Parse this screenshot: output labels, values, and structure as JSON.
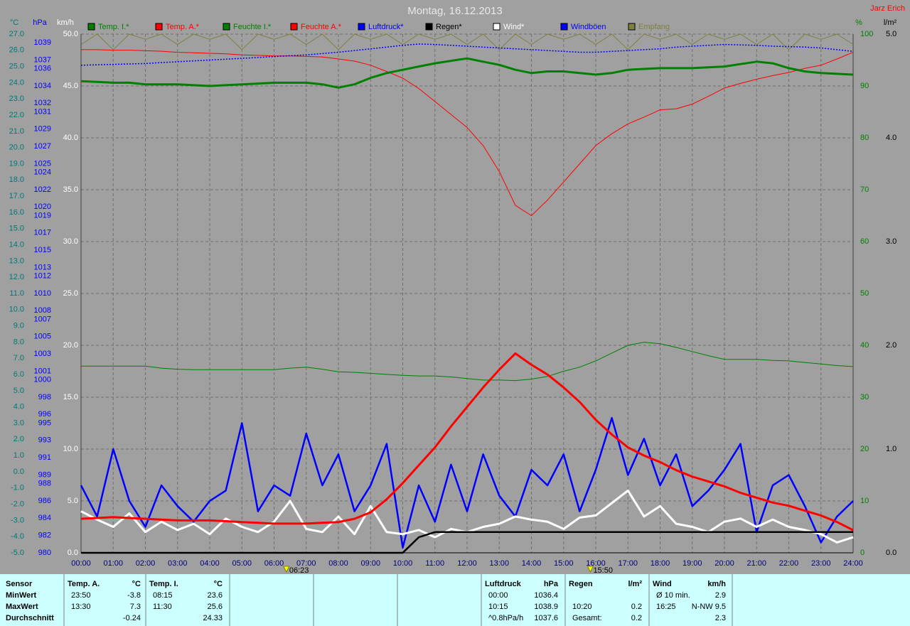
{
  "chart_data": {
    "type": "line",
    "title": "Montag, 16.12.2013",
    "author": "Jarz Erich",
    "grid": true,
    "x": [
      0,
      0.5,
      1,
      1.5,
      2,
      2.5,
      3,
      3.5,
      4,
      4.5,
      5,
      5.5,
      6,
      6.5,
      7,
      7.5,
      8,
      8.5,
      9,
      9.5,
      10,
      10.5,
      11,
      11.5,
      12,
      12.5,
      13,
      13.5,
      14,
      14.5,
      15,
      15.5,
      16,
      16.5,
      17,
      17.5,
      18,
      18.5,
      19,
      19.5,
      20,
      20.5,
      21,
      21.5,
      22,
      22.5,
      23,
      23.5,
      24
    ],
    "xlim": [
      0,
      24
    ],
    "xticks": [
      {
        "value": 0,
        "label": "00:00"
      },
      {
        "value": 1,
        "label": "01:00"
      },
      {
        "value": 2,
        "label": "02:00"
      },
      {
        "value": 3,
        "label": "03:00"
      },
      {
        "value": 4,
        "label": "04:00"
      },
      {
        "value": 5,
        "label": "05:00"
      },
      {
        "value": 6,
        "label": "06:00"
      },
      {
        "value": 7,
        "label": "07:00"
      },
      {
        "value": 8,
        "label": "08:00"
      },
      {
        "value": 9,
        "label": "09:00"
      },
      {
        "value": 10,
        "label": "10:00"
      },
      {
        "value": 11,
        "label": "11:00"
      },
      {
        "value": 12,
        "label": "12:00"
      },
      {
        "value": 13,
        "label": "13:00"
      },
      {
        "value": 14,
        "label": "14:00"
      },
      {
        "value": 15,
        "label": "15:00"
      },
      {
        "value": 16,
        "label": "16:00"
      },
      {
        "value": 17,
        "label": "17:00"
      },
      {
        "value": 18,
        "label": "18:00"
      },
      {
        "value": 19,
        "label": "19:00"
      },
      {
        "value": 20,
        "label": "20:00"
      },
      {
        "value": 21,
        "label": "21:00"
      },
      {
        "value": 22,
        "label": "22:00"
      },
      {
        "value": 23,
        "label": "23:00"
      },
      {
        "value": 24,
        "label": "24:00"
      }
    ],
    "markers": [
      {
        "value": 6.383,
        "label": "06:23"
      },
      {
        "value": 15.833,
        "label": "15:50"
      }
    ],
    "axes": [
      {
        "label": "°C",
        "color": "#007878",
        "lim": [
          -5,
          27
        ],
        "ticks": [
          {
            "value": -5,
            "label": "-5.0"
          },
          {
            "value": -4,
            "label": "-4.0"
          },
          {
            "value": -3,
            "label": "-3.0"
          },
          {
            "value": -2,
            "label": "-2.0"
          },
          {
            "value": -1,
            "label": "-1.0"
          },
          {
            "value": 0,
            "label": "0.0"
          },
          {
            "value": 1,
            "label": "1.0"
          },
          {
            "value": 2,
            "label": "2.0"
          },
          {
            "value": 3,
            "label": "3.0"
          },
          {
            "value": 4,
            "label": "4.0"
          },
          {
            "value": 5,
            "label": "5.0"
          },
          {
            "value": 6,
            "label": "6.0"
          },
          {
            "value": 7,
            "label": "7.0"
          },
          {
            "value": 8,
            "label": "8.0"
          },
          {
            "value": 9,
            "label": "9.0"
          },
          {
            "value": 10,
            "label": "10.0"
          },
          {
            "value": 11,
            "label": "11.0"
          },
          {
            "value": 12,
            "label": "12.0"
          },
          {
            "value": 13,
            "label": "13.0"
          },
          {
            "value": 14,
            "label": "14.0"
          },
          {
            "value": 15,
            "label": "15.0"
          },
          {
            "value": 16,
            "label": "16.0"
          },
          {
            "value": 17,
            "label": "17.0"
          },
          {
            "value": 18,
            "label": "18.0"
          },
          {
            "value": 19,
            "label": "19.0"
          },
          {
            "value": 20,
            "label": "20.0"
          },
          {
            "value": 21,
            "label": "21.0"
          },
          {
            "value": 22,
            "label": "22.0"
          },
          {
            "value": 23,
            "label": "23.0"
          },
          {
            "value": 24,
            "label": "24.0"
          },
          {
            "value": 25,
            "label": "25.0"
          },
          {
            "value": 26,
            "label": "26.0"
          },
          {
            "value": 27,
            "label": "27.0"
          }
        ]
      },
      {
        "label": "hPa",
        "color": "#0000ff",
        "lim": [
          980,
          1040
        ],
        "ticks": [
          980,
          982,
          984,
          986,
          988,
          989,
          991,
          993,
          995,
          996,
          998,
          1000,
          1001,
          1003,
          1005,
          1007,
          1008,
          1010,
          1012,
          1013,
          1015,
          1017,
          1019,
          1020,
          1022,
          1024,
          1025,
          1027,
          1029,
          1031,
          1032,
          1034,
          1036,
          1037,
          1039
        ]
      },
      {
        "label": "km/h",
        "color": "#ffffff",
        "grid": true,
        "lim": [
          0,
          50
        ],
        "ticks": [
          {
            "value": 0,
            "label": "0.0"
          },
          {
            "value": 5,
            "label": "5.0"
          },
          {
            "value": 10,
            "label": "10.0"
          },
          {
            "value": 15,
            "label": "15.0"
          },
          {
            "value": 20,
            "label": "20.0"
          },
          {
            "value": 25,
            "label": "25.0"
          },
          {
            "value": 30,
            "label": "30.0"
          },
          {
            "value": 35,
            "label": "35.0"
          },
          {
            "value": 40,
            "label": "40.0"
          },
          {
            "value": 45,
            "label": "45.0"
          },
          {
            "value": 50,
            "label": "50.0"
          }
        ]
      },
      {
        "label": "%",
        "color": "#008000",
        "lim": [
          0,
          100
        ],
        "ticks": [
          0,
          10,
          20,
          30,
          40,
          50,
          60,
          70,
          80,
          90,
          100
        ]
      },
      {
        "label": "l/m²",
        "color": "#000000",
        "lim": [
          0,
          5
        ],
        "ticks": [
          {
            "value": 0,
            "label": "0.0"
          },
          {
            "value": 1,
            "label": "1.0"
          },
          {
            "value": 2,
            "label": "2.0"
          },
          {
            "value": 3,
            "label": "3.0"
          },
          {
            "value": 4,
            "label": "4.0"
          },
          {
            "value": 5,
            "label": "5.0"
          }
        ]
      }
    ],
    "series": [
      {
        "name": "Temp. I.*",
        "color": "#008000",
        "axis": 0,
        "values": [
          24.1,
          24.05,
          24.0,
          24.0,
          23.9,
          23.9,
          23.9,
          23.85,
          23.8,
          23.85,
          23.9,
          23.95,
          24.0,
          24.0,
          24.0,
          23.9,
          23.7,
          23.9,
          24.3,
          24.6,
          24.8,
          25.0,
          25.2,
          25.35,
          25.5,
          25.3,
          25.1,
          24.8,
          24.6,
          24.7,
          24.7,
          24.6,
          24.5,
          24.6,
          24.8,
          24.85,
          24.9,
          24.9,
          24.9,
          24.95,
          25.0,
          25.15,
          25.3,
          25.2,
          24.9,
          24.7,
          24.6,
          24.55,
          24.5
        ]
      },
      {
        "name": "Temp. A.*",
        "color": "#ff0000",
        "axis": 0,
        "values": [
          -2.9,
          -2.85,
          -2.8,
          -2.85,
          -2.9,
          -2.95,
          -3.0,
          -3.0,
          -3.0,
          -3.05,
          -3.1,
          -3.15,
          -3.2,
          -3.2,
          -3.2,
          -3.15,
          -3.1,
          -2.9,
          -2.5,
          -1.7,
          -0.7,
          0.4,
          1.5,
          2.8,
          4.0,
          5.2,
          6.3,
          7.3,
          6.6,
          6.0,
          5.2,
          4.3,
          3.2,
          2.3,
          1.5,
          1.0,
          0.6,
          0.1,
          -0.3,
          -0.6,
          -0.9,
          -1.3,
          -1.6,
          -1.9,
          -2.1,
          -2.4,
          -2.7,
          -3.1,
          -3.6
        ]
      },
      {
        "name": "Feuchte I.*",
        "color": "#008000",
        "axis": 3,
        "values": [
          36.0,
          36.0,
          36.0,
          36.0,
          36.0,
          35.6,
          35.4,
          35.3,
          35.3,
          35.3,
          35.3,
          35.3,
          35.3,
          35.6,
          35.8,
          35.4,
          34.9,
          34.8,
          34.6,
          34.4,
          34.2,
          34.1,
          34.1,
          33.9,
          33.6,
          33.3,
          33.3,
          33.2,
          33.5,
          34.0,
          35.0,
          35.8,
          37.0,
          38.5,
          40.0,
          40.6,
          40.3,
          39.6,
          38.8,
          38.0,
          37.3,
          37.3,
          37.3,
          37.1,
          37.0,
          36.7,
          36.4,
          36.1,
          35.9
        ]
      },
      {
        "name": "Feuchte A.*",
        "color": "#ff0000",
        "axis": 3,
        "values": [
          97.0,
          97.0,
          96.9,
          96.9,
          96.8,
          96.7,
          96.5,
          96.4,
          96.3,
          96.2,
          96.0,
          95.9,
          95.8,
          95.8,
          95.7,
          95.6,
          95.2,
          94.8,
          94.0,
          92.8,
          91.5,
          89.5,
          87.0,
          84.5,
          82.0,
          78.5,
          73.5,
          67.0,
          65.0,
          68.0,
          71.5,
          75.0,
          78.5,
          80.8,
          82.7,
          84.0,
          85.4,
          85.6,
          86.5,
          88.0,
          89.6,
          90.5,
          91.3,
          92.0,
          92.6,
          93.4,
          94.0,
          95.2,
          96.5
        ]
      },
      {
        "name": "Luftdruck*",
        "color": "#0000ff",
        "axis": 1,
        "values": [
          1036.4,
          1036.45,
          1036.5,
          1036.55,
          1036.6,
          1036.7,
          1036.8,
          1036.9,
          1037.0,
          1037.1,
          1037.2,
          1037.3,
          1037.4,
          1037.5,
          1037.6,
          1037.75,
          1037.9,
          1038.1,
          1038.3,
          1038.5,
          1038.7,
          1038.85,
          1038.8,
          1038.7,
          1038.6,
          1038.5,
          1038.4,
          1038.3,
          1038.2,
          1038.1,
          1038.0,
          1037.9,
          1037.9,
          1038.0,
          1038.1,
          1038.2,
          1038.3,
          1038.5,
          1038.6,
          1038.7,
          1038.8,
          1038.75,
          1038.7,
          1038.6,
          1038.55,
          1038.5,
          1038.4,
          1038.2,
          1038.0
        ]
      },
      {
        "name": "Regen*",
        "color": "#000000",
        "axis": 4,
        "values": [
          0,
          0,
          0,
          0,
          0,
          0,
          0,
          0,
          0,
          0,
          0,
          0,
          0,
          0,
          0,
          0,
          0,
          0,
          0,
          0,
          0,
          0.15,
          0.2,
          0.2,
          0.2,
          0.2,
          0.2,
          0.2,
          0.2,
          0.2,
          0.2,
          0.2,
          0.2,
          0.2,
          0.2,
          0.2,
          0.2,
          0.2,
          0.2,
          0.2,
          0.2,
          0.2,
          0.2,
          0.2,
          0.2,
          0.2,
          0.2,
          0.2,
          0.2
        ]
      },
      {
        "name": "Wind*",
        "color": "#ffffff",
        "axis": 2,
        "values": [
          4.0,
          3.2,
          2.5,
          3.8,
          2.0,
          3.0,
          2.2,
          2.8,
          1.8,
          3.3,
          2.5,
          2.0,
          3.0,
          5.0,
          2.3,
          2.0,
          3.5,
          1.8,
          4.5,
          2.0,
          1.8,
          2.2,
          1.5,
          2.3,
          2.0,
          2.5,
          2.8,
          3.5,
          3.2,
          3.0,
          2.3,
          3.4,
          3.6,
          4.8,
          6.0,
          3.5,
          4.5,
          2.8,
          2.5,
          2.0,
          3.0,
          3.3,
          2.5,
          3.2,
          2.5,
          2.2,
          1.8,
          1.0,
          1.5
        ]
      },
      {
        "name": "Windböen",
        "color": "#0000ff",
        "axis": 2,
        "values": [
          6.5,
          3.5,
          10.0,
          5.0,
          2.5,
          6.5,
          4.5,
          3.0,
          5.0,
          6.0,
          12.5,
          4.0,
          6.5,
          5.5,
          11.5,
          6.5,
          9.5,
          4.0,
          6.5,
          10.5,
          0.5,
          6.5,
          3.0,
          8.5,
          4.0,
          9.5,
          5.5,
          3.5,
          8.0,
          6.5,
          9.5,
          4.0,
          8.0,
          13.0,
          7.5,
          11.0,
          6.5,
          9.5,
          4.5,
          6.0,
          8.0,
          10.5,
          2.0,
          6.5,
          7.5,
          4.5,
          1.0,
          3.5,
          5.0
        ]
      },
      {
        "name": "Empfang",
        "color": "#808040",
        "axis": 3,
        "values": [
          98,
          100,
          97,
          100,
          99,
          100,
          98,
          100,
          99,
          100,
          97,
          100,
          99,
          100,
          98,
          100,
          97,
          100,
          99,
          100,
          98,
          100,
          99,
          100,
          98,
          100,
          97,
          100,
          98,
          100,
          99,
          100,
          98,
          100,
          97,
          100,
          99,
          100,
          98,
          100,
          99,
          100,
          98,
          100,
          97,
          100,
          99,
          100,
          98
        ]
      }
    ],
    "summary": {
      "header": "Sensor",
      "rows": [
        "MinWert",
        "MaxWert",
        "Durchschnitt"
      ],
      "groups": [
        {
          "name": "Temp. A.",
          "unit": "°C",
          "cells": [
            [
              "23:50",
              "-3.8"
            ],
            [
              "13:30",
              "7.3"
            ],
            [
              null,
              "-0.24"
            ]
          ]
        },
        {
          "name": "Temp. I.",
          "unit": "°C",
          "cells": [
            [
              "08:15",
              "23.6"
            ],
            [
              "11:30",
              "25.6"
            ],
            [
              null,
              "24.33"
            ]
          ]
        },
        {
          "name": "Luftdruck",
          "unit": "hPa",
          "cells": [
            [
              "00:00",
              "1036.4"
            ],
            [
              "10:15",
              "1038.9"
            ],
            [
              "^0.8hPa/h",
              "1037.6"
            ]
          ]
        },
        {
          "name": "Regen",
          "unit": "l/m²",
          "cells": [
            [
              null,
              null
            ],
            [
              "10:20",
              "0.2"
            ],
            [
              "Gesamt:",
              "0.2"
            ]
          ]
        },
        {
          "name": "Wind",
          "unit": "km/h",
          "cells": [
            [
              "Ø 10 min.",
              "2.9"
            ],
            [
              "16:25",
              "N-NW 9.5"
            ],
            [
              null,
              "2.3"
            ]
          ]
        }
      ]
    }
  }
}
